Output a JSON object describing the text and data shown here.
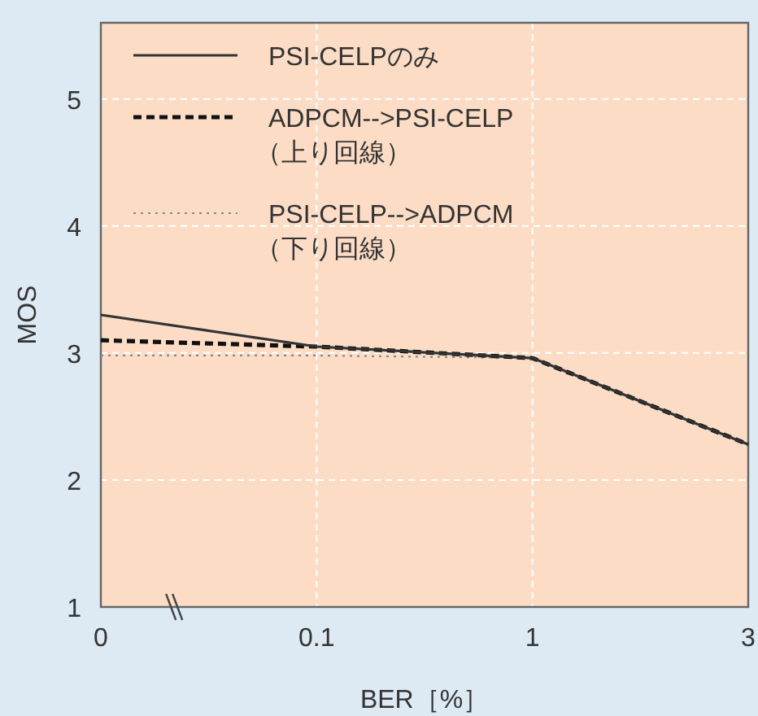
{
  "chart_data": {
    "type": "line",
    "xlabel": "BER［%］",
    "ylabel": "MOS",
    "categories": [
      "0",
      "0.1",
      "1",
      "3"
    ],
    "series": [
      {
        "name": "PSI-CELPのみ",
        "color": "#333333",
        "line_style": "solid",
        "values": [
          3.3,
          3.05,
          2.96,
          2.28
        ]
      },
      {
        "name": "ADPCM-->PSI-CELP\n（上り回線）",
        "color": "#111111",
        "line_style": "dashed",
        "values": [
          3.1,
          3.05,
          2.96,
          2.28
        ]
      },
      {
        "name": "PSI-CELP-->ADPCM\n（下り回線）",
        "color": "#888888",
        "line_style": "dotted",
        "values": [
          2.98,
          2.98,
          2.96,
          2.28
        ]
      }
    ],
    "ylim": [
      1,
      5.6
    ],
    "yticks": [
      1,
      2,
      3,
      4,
      5
    ],
    "grid": true,
    "legend": "top left",
    "marker": "none"
  }
}
